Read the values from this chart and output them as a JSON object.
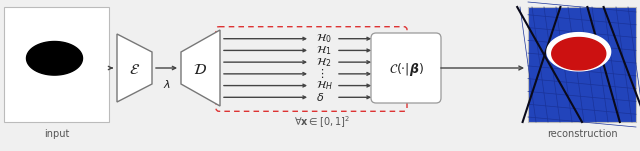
{
  "fig_width": 6.4,
  "fig_height": 1.51,
  "dpi": 100,
  "bg_color": "#f0f0f0",
  "input_label": "input",
  "recon_label": "reconstruction",
  "encoder_label": "$\\mathcal{E}$",
  "lambda_label": "$\\lambda$",
  "decoder_label": "$\\mathcal{D}$",
  "convex_label": "$\\mathcal{C}(\\cdot|\\boldsymbol{\\beta})$",
  "halfspaces": [
    "$\\mathcal{H}_0$",
    "$\\mathcal{H}_1$",
    "$\\mathcal{H}_2$",
    "$\\vdots$",
    "$\\mathcal{H}_H$",
    "$\\delta$"
  ],
  "forall_label": "$\\forall \\mathbf{x} \\in [0,1]^2$",
  "dashed_box_color": "#dd3333",
  "arrow_color": "#444444",
  "text_color": "#555555",
  "shape_edge_color": "#777777",
  "shape_face_color": "#ffffff"
}
